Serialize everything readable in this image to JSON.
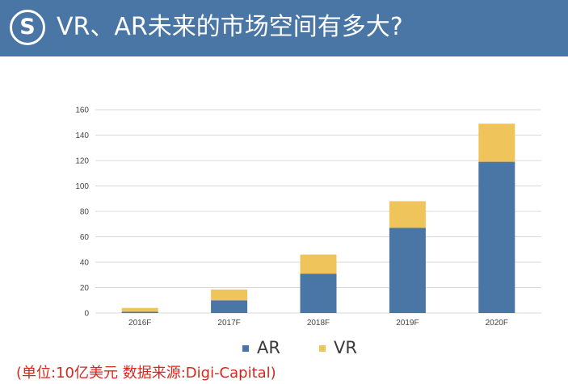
{
  "header": {
    "logo_letter": "S",
    "title": "VR、AR未来的市场空间有多大?"
  },
  "colors": {
    "header_bg": "#4a76a6",
    "ar": "#4a76a6",
    "vr": "#efc55b",
    "source_text": "#d9261c"
  },
  "chart_data": {
    "type": "bar",
    "stacked": true,
    "categories": [
      "2016F",
      "2017F",
      "2018F",
      "2019F",
      "2020F"
    ],
    "series": [
      {
        "name": "AR",
        "values": [
          1,
          10,
          31,
          67,
          119
        ]
      },
      {
        "name": "VR",
        "values": [
          3,
          8.5,
          15,
          21,
          30
        ]
      }
    ],
    "ylim": [
      0,
      160
    ],
    "yticks": [
      0,
      20,
      40,
      60,
      80,
      100,
      120,
      140,
      160
    ],
    "grid": true,
    "legend": "bottom"
  },
  "footer": {
    "source": "(单位:10亿美元 数据来源:Digi-Capital)"
  }
}
